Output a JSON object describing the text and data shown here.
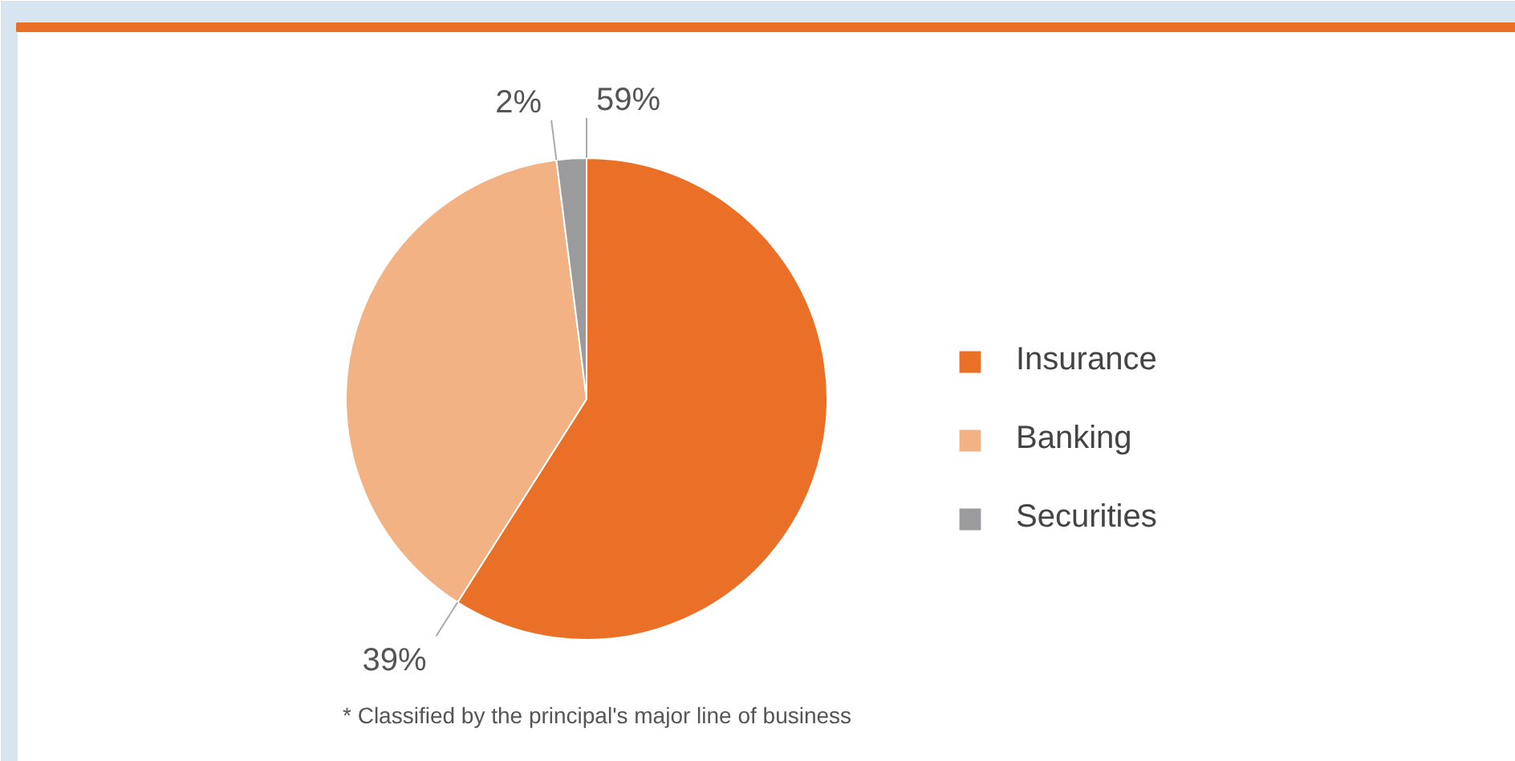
{
  "chart_data": {
    "type": "pie",
    "categories": [
      "Insurance",
      "Banking",
      "Securities"
    ],
    "values": [
      59,
      39,
      2
    ],
    "colors": [
      "#e97026",
      "#f3b283",
      "#9b9b9d"
    ],
    "value_labels": [
      "59%",
      "39%",
      "2%"
    ],
    "legend": "right",
    "annotations": [
      "* Classified by the principal's major line of business"
    ]
  }
}
